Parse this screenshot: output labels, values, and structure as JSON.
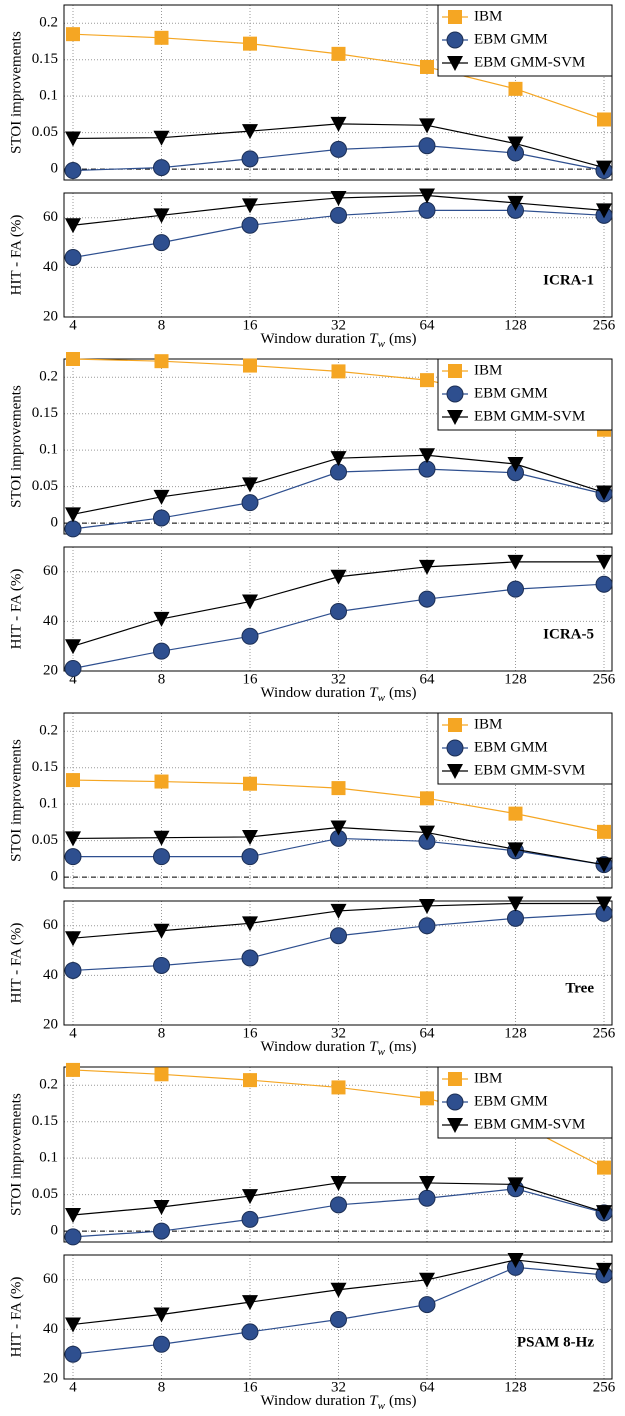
{
  "chart_data": [
    {
      "type": "line",
      "ylabel": "STOI improvements",
      "ylim": [
        -0.015,
        0.225
      ],
      "yticks": [
        0,
        0.05,
        0.1,
        0.15,
        0.2
      ],
      "x": [
        4,
        8,
        16,
        32,
        64,
        128,
        256
      ],
      "xlim": [
        4,
        256
      ],
      "xticks": [
        4,
        8,
        16,
        32,
        64,
        128,
        256
      ],
      "log_x": 2,
      "grid": true,
      "hline": 0,
      "legend": "upper right",
      "series": [
        {
          "name": "IBM",
          "color": "#f5a623",
          "marker": "square",
          "values": [
            0.185,
            0.18,
            0.172,
            0.158,
            0.14,
            0.11,
            0.068
          ]
        },
        {
          "name": "EBM GMM",
          "color": "#2e4f8f",
          "marker": "circle",
          "values": [
            -0.002,
            0.002,
            0.014,
            0.027,
            0.032,
            0.022,
            -0.002
          ]
        },
        {
          "name": "EBM GMM-SVM",
          "color": "#000000",
          "marker": "triangle",
          "values": [
            0.042,
            0.043,
            0.052,
            0.062,
            0.06,
            0.035,
            0.002
          ]
        }
      ]
    },
    {
      "type": "line",
      "ylabel": "HIT - FA (%)",
      "ylim": [
        20,
        70
      ],
      "yticks": [
        20,
        40,
        60
      ],
      "x": [
        4,
        8,
        16,
        32,
        64,
        128,
        256
      ],
      "xlim": [
        4,
        256
      ],
      "xticks": [
        4,
        8,
        16,
        32,
        64,
        128,
        256
      ],
      "log_x": 2,
      "grid": true,
      "annotation": "ICRA-1",
      "xlabel": [
        "Window duration",
        "T",
        "w",
        "(ms)"
      ],
      "series": [
        {
          "color": "#2e4f8f",
          "marker": "circle",
          "values": [
            44,
            50,
            57,
            61,
            63,
            63,
            61
          ]
        },
        {
          "color": "#000000",
          "marker": "triangle",
          "values": [
            57,
            61,
            65,
            68,
            69,
            66,
            63
          ]
        }
      ]
    },
    {
      "type": "line",
      "ylabel": "STOI improvements",
      "ylim": [
        -0.015,
        0.225
      ],
      "yticks": [
        0,
        0.05,
        0.1,
        0.15,
        0.2
      ],
      "x": [
        4,
        8,
        16,
        32,
        64,
        128,
        256
      ],
      "xlim": [
        4,
        256
      ],
      "xticks": [
        4,
        8,
        16,
        32,
        64,
        128,
        256
      ],
      "log_x": 2,
      "grid": true,
      "hline": 0,
      "legend": "upper right",
      "series": [
        {
          "name": "IBM",
          "color": "#f5a623",
          "marker": "square",
          "values": [
            0.225,
            0.222,
            0.216,
            0.208,
            0.196,
            0.17,
            0.128
          ]
        },
        {
          "name": "EBM GMM",
          "color": "#2e4f8f",
          "marker": "circle",
          "values": [
            -0.008,
            0.007,
            0.028,
            0.07,
            0.074,
            0.069,
            0.04
          ]
        },
        {
          "name": "EBM GMM-SVM",
          "color": "#000000",
          "marker": "triangle",
          "values": [
            0.012,
            0.036,
            0.053,
            0.089,
            0.093,
            0.081,
            0.042
          ]
        }
      ]
    },
    {
      "type": "line",
      "ylabel": "HIT - FA (%)",
      "ylim": [
        20,
        70
      ],
      "yticks": [
        20,
        40,
        60
      ],
      "x": [
        4,
        8,
        16,
        32,
        64,
        128,
        256
      ],
      "xlim": [
        4,
        256
      ],
      "xticks": [
        4,
        8,
        16,
        32,
        64,
        128,
        256
      ],
      "log_x": 2,
      "grid": true,
      "annotation": "ICRA-5",
      "xlabel": [
        "Window duration",
        "T",
        "w",
        "(ms)"
      ],
      "series": [
        {
          "color": "#2e4f8f",
          "marker": "circle",
          "values": [
            21,
            28,
            34,
            44,
            49,
            53,
            55
          ]
        },
        {
          "color": "#000000",
          "marker": "triangle",
          "values": [
            30,
            41,
            48,
            58,
            62,
            64,
            64
          ]
        }
      ]
    },
    {
      "type": "line",
      "ylabel": "STOI improvements",
      "ylim": [
        -0.015,
        0.225
      ],
      "yticks": [
        0,
        0.05,
        0.1,
        0.15,
        0.2
      ],
      "x": [
        4,
        8,
        16,
        32,
        64,
        128,
        256
      ],
      "xlim": [
        4,
        256
      ],
      "xticks": [
        4,
        8,
        16,
        32,
        64,
        128,
        256
      ],
      "log_x": 2,
      "grid": true,
      "hline": 0,
      "legend": "upper right",
      "series": [
        {
          "name": "IBM",
          "color": "#f5a623",
          "marker": "square",
          "values": [
            0.133,
            0.131,
            0.128,
            0.122,
            0.108,
            0.087,
            0.062
          ]
        },
        {
          "name": "EBM GMM",
          "color": "#2e4f8f",
          "marker": "circle",
          "values": [
            0.028,
            0.028,
            0.028,
            0.053,
            0.049,
            0.036,
            0.017
          ]
        },
        {
          "name": "EBM GMM-SVM",
          "color": "#000000",
          "marker": "triangle",
          "values": [
            0.053,
            0.054,
            0.055,
            0.068,
            0.061,
            0.038,
            0.017
          ]
        }
      ]
    },
    {
      "type": "line",
      "ylabel": "HIT - FA (%)",
      "ylim": [
        20,
        70
      ],
      "yticks": [
        20,
        40,
        60
      ],
      "x": [
        4,
        8,
        16,
        32,
        64,
        128,
        256
      ],
      "xlim": [
        4,
        256
      ],
      "xticks": [
        4,
        8,
        16,
        32,
        64,
        128,
        256
      ],
      "log_x": 2,
      "grid": true,
      "annotation": "Tree",
      "xlabel": [
        "Window duration",
        "T",
        "w",
        "(ms)"
      ],
      "series": [
        {
          "color": "#2e4f8f",
          "marker": "circle",
          "values": [
            42,
            44,
            47,
            56,
            60,
            63,
            65
          ]
        },
        {
          "color": "#000000",
          "marker": "triangle",
          "values": [
            55,
            58,
            61,
            66,
            68,
            69,
            69
          ]
        }
      ]
    },
    {
      "type": "line",
      "ylabel": "STOI improvements",
      "ylim": [
        -0.015,
        0.225
      ],
      "yticks": [
        0,
        0.05,
        0.1,
        0.15,
        0.2
      ],
      "x": [
        4,
        8,
        16,
        32,
        64,
        128,
        256
      ],
      "xlim": [
        4,
        256
      ],
      "xticks": [
        4,
        8,
        16,
        32,
        64,
        128,
        256
      ],
      "log_x": 2,
      "grid": true,
      "hline": 0,
      "legend": "upper right",
      "series": [
        {
          "name": "IBM",
          "color": "#f5a623",
          "marker": "square",
          "values": [
            0.221,
            0.215,
            0.207,
            0.197,
            0.182,
            0.15,
            0.087
          ]
        },
        {
          "name": "EBM GMM",
          "color": "#2e4f8f",
          "marker": "circle",
          "values": [
            -0.008,
            0.0,
            0.016,
            0.036,
            0.045,
            0.058,
            0.025
          ]
        },
        {
          "name": "EBM GMM-SVM",
          "color": "#000000",
          "marker": "triangle",
          "values": [
            0.022,
            0.033,
            0.048,
            0.066,
            0.066,
            0.064,
            0.026
          ]
        }
      ]
    },
    {
      "type": "line",
      "ylabel": "HIT - FA (%)",
      "ylim": [
        20,
        70
      ],
      "yticks": [
        20,
        40,
        60
      ],
      "x": [
        4,
        8,
        16,
        32,
        64,
        128,
        256
      ],
      "xlim": [
        4,
        256
      ],
      "xticks": [
        4,
        8,
        16,
        32,
        64,
        128,
        256
      ],
      "log_x": 2,
      "grid": true,
      "annotation": "PSAM 8-Hz",
      "xlabel": [
        "Window duration",
        "T",
        "w",
        "(ms)"
      ],
      "series": [
        {
          "color": "#2e4f8f",
          "marker": "circle",
          "values": [
            30,
            34,
            39,
            44,
            50,
            65,
            62
          ]
        },
        {
          "color": "#000000",
          "marker": "triangle",
          "values": [
            42,
            46,
            51,
            56,
            60,
            68,
            64
          ]
        }
      ]
    }
  ]
}
